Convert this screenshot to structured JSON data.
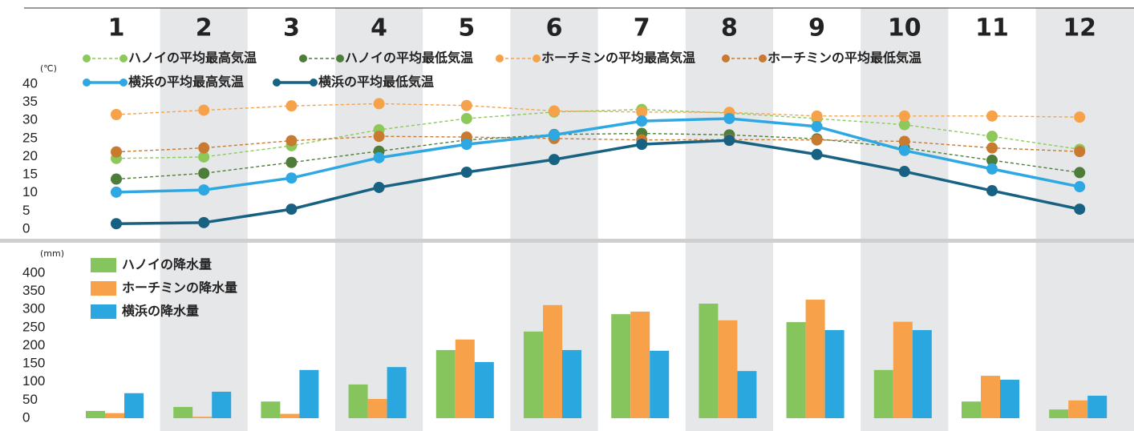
{
  "chart_data": [
    {
      "type": "line",
      "y_label": "(℃)",
      "categories": [
        "1",
        "2",
        "3",
        "4",
        "5",
        "6",
        "7",
        "8",
        "9",
        "10",
        "11",
        "12"
      ],
      "ylim": [
        0,
        40
      ],
      "yticks": [
        0,
        5,
        10,
        15,
        20,
        25,
        30,
        35,
        40
      ],
      "series": [
        {
          "name": "ハノイの平均最高気温",
          "color": "#8dc95a",
          "dashed": true,
          "values": [
            19.5,
            19.9,
            23.0,
            27.4,
            30.5,
            32.3,
            33.0,
            32.0,
            30.5,
            28.8,
            25.6,
            22.0
          ]
        },
        {
          "name": "ハノイの平均最低気温",
          "color": "#4e7d3a",
          "dashed": true,
          "values": [
            13.8,
            15.4,
            18.4,
            21.5,
            24.6,
            26.1,
            26.4,
            26.0,
            24.9,
            22.4,
            19.0,
            15.6
          ]
        },
        {
          "name": "ホーチミンの平均最高気温",
          "color": "#f6a24b",
          "dashed": true,
          "values": [
            31.6,
            32.8,
            34.0,
            34.6,
            34.1,
            32.6,
            32.3,
            32.2,
            31.2,
            31.2,
            31.2,
            30.9
          ]
        },
        {
          "name": "ホーチミンの平均最低気温",
          "color": "#c87a30",
          "dashed": true,
          "values": [
            21.3,
            22.4,
            24.4,
            25.6,
            25.4,
            25.0,
            24.6,
            24.7,
            24.6,
            24.2,
            22.4,
            21.4
          ]
        },
        {
          "name": "横浜の平均最高気温",
          "color": "#2ea8e2",
          "dashed": false,
          "values": [
            10.2,
            10.8,
            14.1,
            19.7,
            23.4,
            26.0,
            29.8,
            30.5,
            28.3,
            21.7,
            16.6,
            11.7
          ]
        },
        {
          "name": "横浜の平均最低気温",
          "color": "#176283",
          "dashed": false,
          "values": [
            1.5,
            1.8,
            5.5,
            11.5,
            15.7,
            19.2,
            23.4,
            24.5,
            20.6,
            15.9,
            10.6,
            5.5
          ]
        }
      ]
    },
    {
      "type": "bar",
      "y_label": "(mm)",
      "ylim": [
        0,
        400
      ],
      "yticks": [
        0,
        50,
        100,
        150,
        200,
        250,
        300,
        350,
        400
      ],
      "series": [
        {
          "name": "ハノイの降水量",
          "color": "#86c55e",
          "values": [
            20,
            31,
            46,
            93,
            188,
            239,
            287,
            316,
            265,
            133,
            46,
            24
          ]
        },
        {
          "name": "ホーチミンの降水量",
          "color": "#f7a24b",
          "values": [
            14,
            4,
            12,
            53,
            217,
            312,
            294,
            270,
            327,
            266,
            117,
            49
          ]
        },
        {
          "name": "横浜の降水量",
          "color": "#2aa7df",
          "values": [
            69,
            73,
            133,
            141,
            155,
            188,
            186,
            130,
            243,
            243,
            106,
            62
          ]
        }
      ]
    }
  ]
}
